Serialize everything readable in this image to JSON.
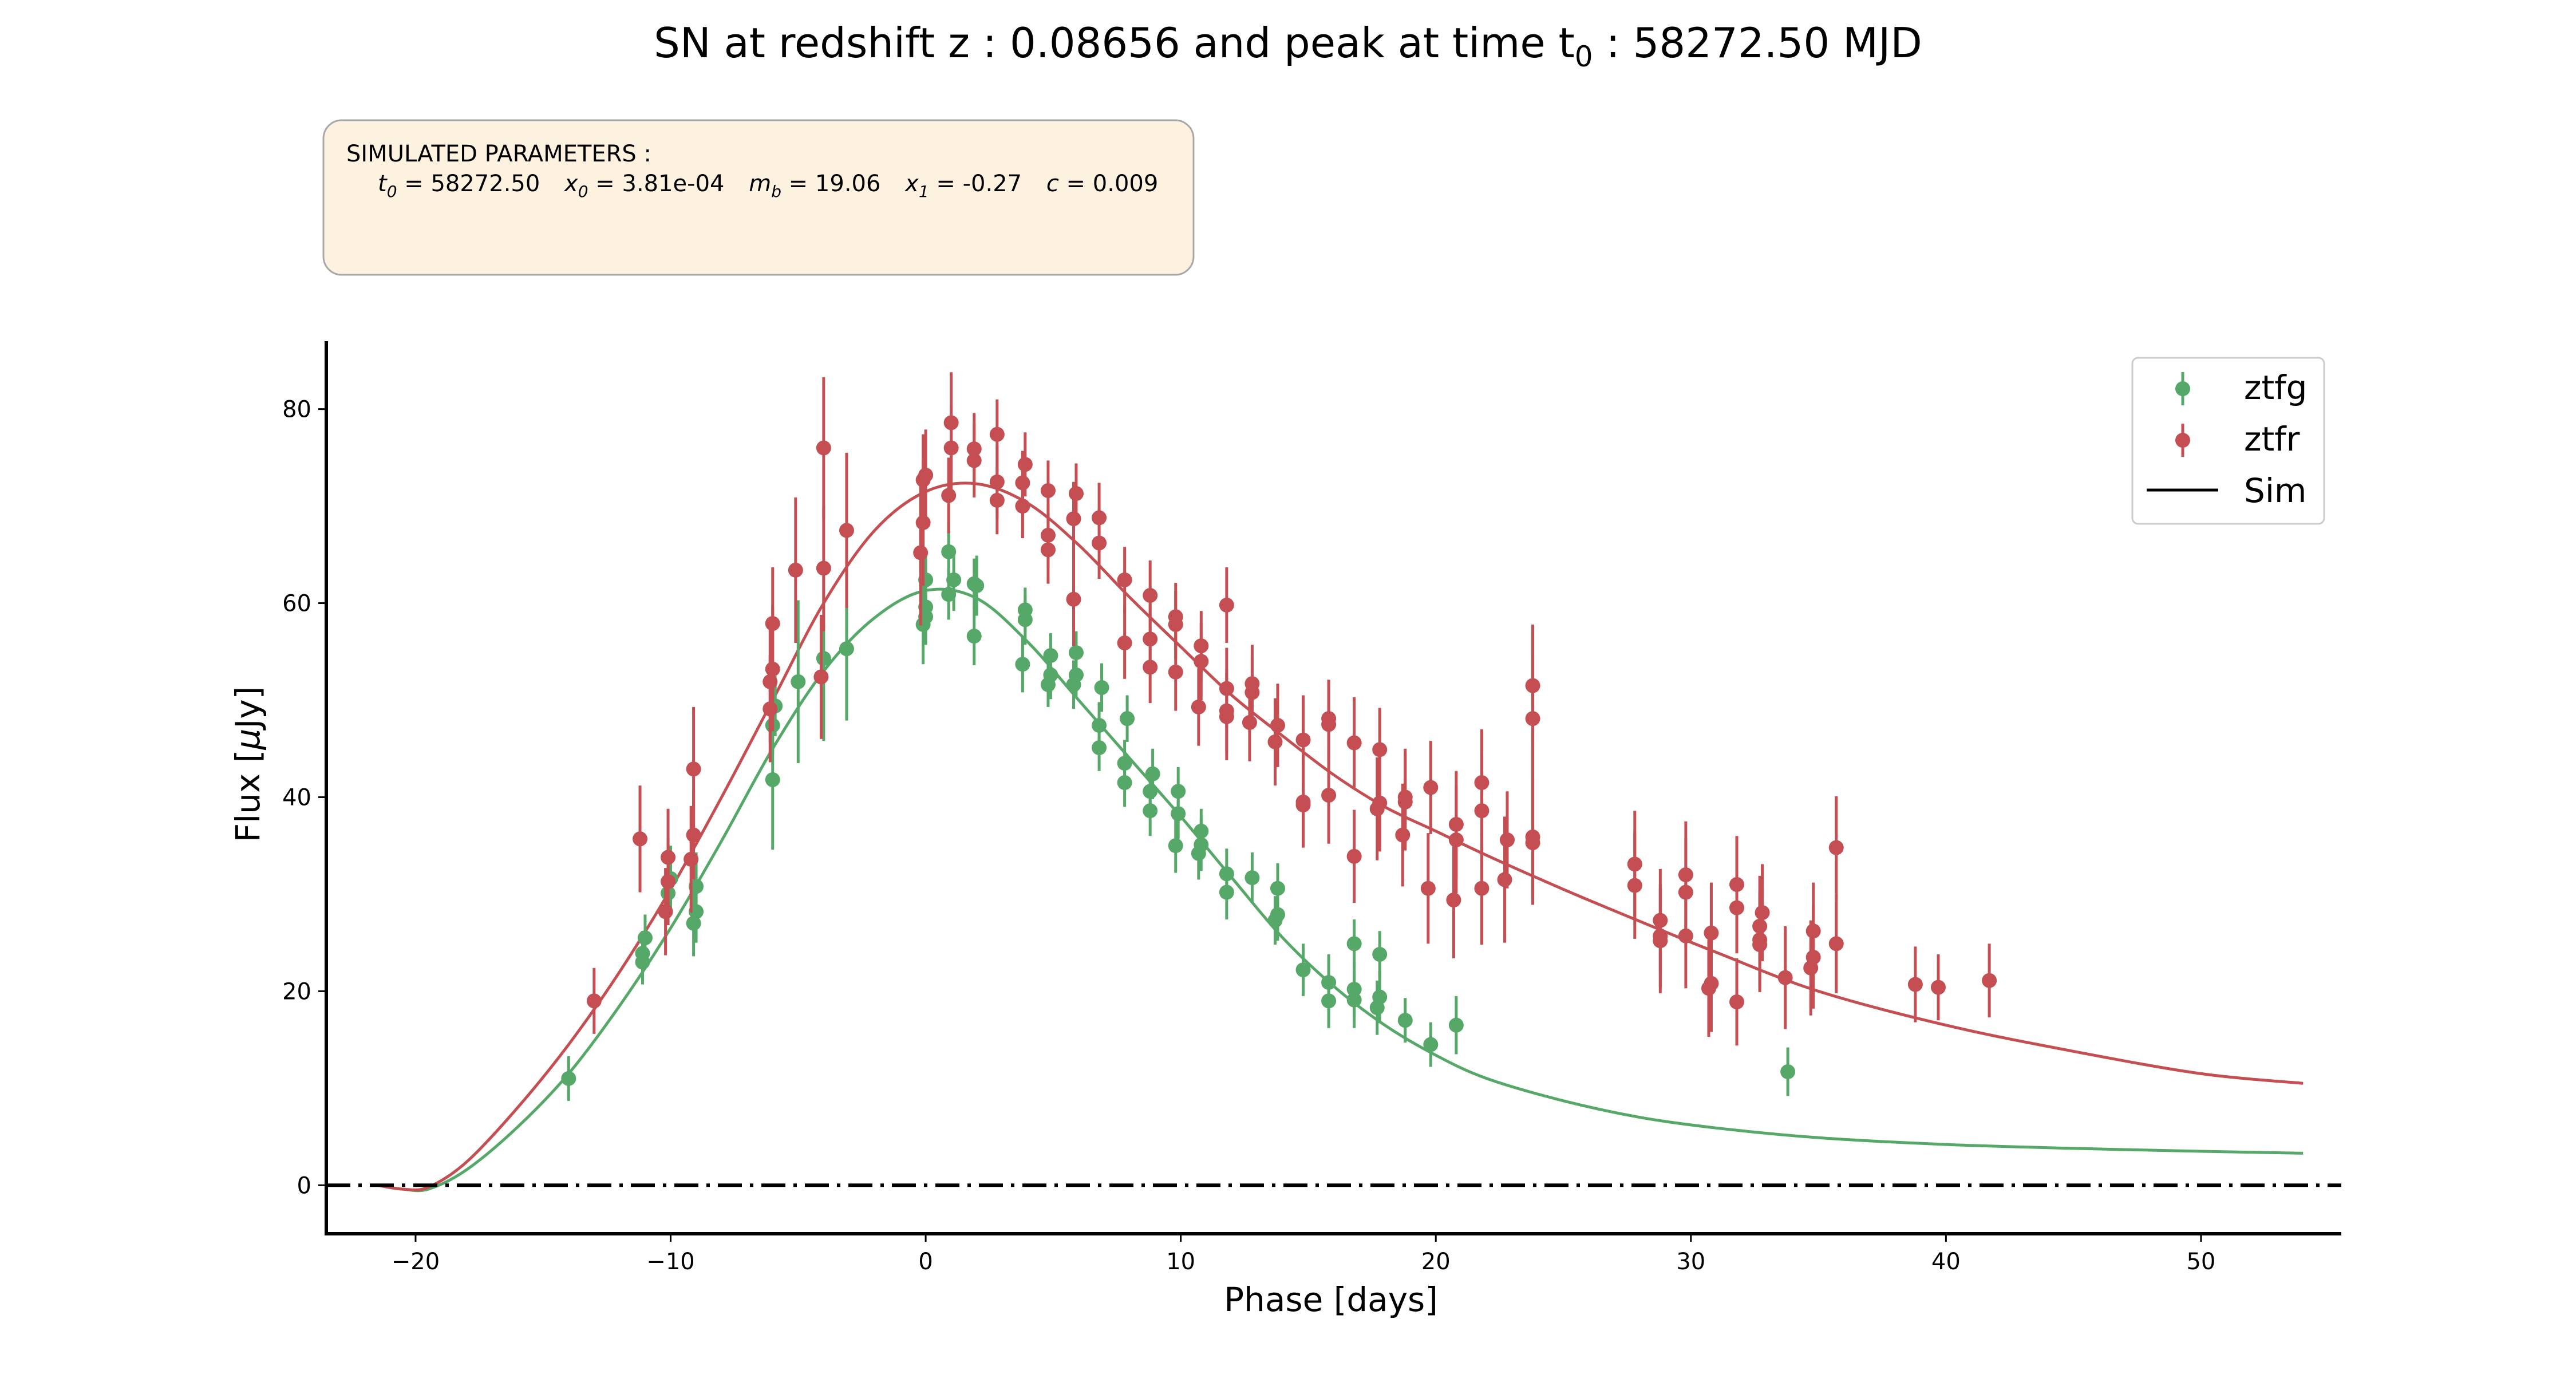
{
  "chart_data": {
    "type": "scatter",
    "title_parts": {
      "prefix": "SN at redshift z : 0.08656 and peak at time t",
      "sub": "0",
      "suffix": " : 58272.50 MJD"
    },
    "xlabel": "Phase [days]",
    "ylabel_parts": {
      "prefix": "Flux [",
      "mu": "μ",
      "suffix": "Jy]"
    },
    "xlim": [
      -23.5,
      55.5
    ],
    "ylim": [
      -5,
      87
    ],
    "xticks": [
      -20,
      -10,
      0,
      10,
      20,
      30,
      40,
      50
    ],
    "yticks": [
      0,
      20,
      40,
      60,
      80
    ],
    "xtick_labels": [
      "−20",
      "−10",
      "0",
      "10",
      "20",
      "30",
      "40",
      "50"
    ],
    "ytick_labels": [
      "0",
      "20",
      "40",
      "60",
      "80"
    ],
    "zero_line": 0,
    "params_box": {
      "header": "SIMULATED PARAMETERS :",
      "t0": {
        "sym": "t",
        "sub": "0",
        "val": " = 58272.50"
      },
      "x0": {
        "sym": "x",
        "sub": "0",
        "val": " = 3.81e-04"
      },
      "mb": {
        "sym": "m",
        "sub": "b",
        "val": " = 19.06"
      },
      "x1": {
        "sym": "x",
        "sub": "1",
        "val": " = -0.27"
      },
      "c": {
        "sym": "c",
        "val": " = 0.009"
      }
    },
    "legend": [
      {
        "label": "ztfg",
        "kind": "point",
        "color": "#55a868"
      },
      {
        "label": "ztfr",
        "kind": "point",
        "color": "#c44e52"
      },
      {
        "label": "Sim",
        "kind": "line",
        "color": "#000000"
      }
    ],
    "series": [
      {
        "name": "ztfg",
        "color": "#55a868",
        "points": [
          [
            -14.0,
            11.0,
            2.3
          ],
          [
            -11.1,
            23.0,
            2.3
          ],
          [
            -11.1,
            23.9,
            2.3
          ],
          [
            -11.0,
            25.5,
            2.4
          ],
          [
            -10.1,
            30.1,
            3.0
          ],
          [
            -10.0,
            31.6,
            3.4
          ],
          [
            -9.1,
            27.0,
            3.4
          ],
          [
            -9.0,
            28.2,
            3.2
          ],
          [
            -9.0,
            30.8,
            3.5
          ],
          [
            -6.0,
            41.8,
            7.2
          ],
          [
            -6.0,
            47.4,
            3.0
          ],
          [
            -5.9,
            49.4,
            3.1
          ],
          [
            -5.0,
            51.9,
            8.4
          ],
          [
            -4.0,
            54.3,
            8.5
          ],
          [
            -3.1,
            55.3,
            7.4
          ],
          [
            -0.1,
            57.8,
            4.1
          ],
          [
            0.0,
            58.6,
            2.9
          ],
          [
            0.0,
            59.6,
            2.5
          ],
          [
            0.0,
            62.4,
            2.6
          ],
          [
            0.9,
            60.9,
            2.6
          ],
          [
            0.9,
            65.3,
            3.0
          ],
          [
            1.1,
            62.4,
            3.2
          ],
          [
            1.9,
            56.6,
            3.0
          ],
          [
            1.9,
            62.0,
            2.6
          ],
          [
            2.0,
            61.8,
            3.1
          ],
          [
            3.8,
            53.7,
            2.9
          ],
          [
            3.9,
            58.3,
            2.6
          ],
          [
            3.9,
            59.3,
            2.3
          ],
          [
            4.8,
            51.6,
            2.3
          ],
          [
            4.9,
            52.6,
            2.5
          ],
          [
            4.9,
            54.6,
            2.3
          ],
          [
            5.8,
            51.6,
            2.5
          ],
          [
            5.9,
            52.6,
            2.4
          ],
          [
            5.9,
            54.9,
            2.2
          ],
          [
            6.8,
            45.1,
            2.4
          ],
          [
            6.8,
            47.4,
            2.4
          ],
          [
            6.9,
            51.3,
            2.5
          ],
          [
            7.8,
            41.5,
            2.5
          ],
          [
            7.8,
            43.5,
            2.4
          ],
          [
            7.9,
            48.1,
            2.4
          ],
          [
            8.8,
            38.6,
            2.6
          ],
          [
            8.8,
            40.6,
            2.5
          ],
          [
            8.9,
            42.4,
            2.6
          ],
          [
            9.8,
            35.0,
            2.8
          ],
          [
            9.9,
            38.3,
            2.6
          ],
          [
            9.9,
            40.6,
            2.5
          ],
          [
            10.7,
            34.2,
            2.7
          ],
          [
            10.8,
            35.1,
            2.7
          ],
          [
            10.8,
            36.5,
            2.3
          ],
          [
            11.8,
            30.2,
            2.8
          ],
          [
            11.8,
            32.1,
            2.6
          ],
          [
            12.8,
            31.7,
            2.6
          ],
          [
            13.7,
            27.3,
            2.5
          ],
          [
            13.8,
            27.9,
            2.7
          ],
          [
            13.8,
            30.6,
            2.6
          ],
          [
            14.8,
            22.2,
            2.7
          ],
          [
            15.8,
            19.0,
            2.8
          ],
          [
            15.8,
            20.9,
            2.9
          ],
          [
            16.8,
            19.1,
            2.9
          ],
          [
            16.8,
            20.2,
            2.9
          ],
          [
            16.8,
            24.9,
            2.5
          ],
          [
            17.7,
            18.3,
            2.8
          ],
          [
            17.8,
            19.4,
            2.7
          ],
          [
            17.8,
            23.8,
            2.4
          ],
          [
            18.8,
            17.0,
            2.3
          ],
          [
            19.8,
            14.5,
            2.3
          ],
          [
            20.8,
            16.5,
            3.0
          ],
          [
            33.8,
            11.7,
            2.5
          ]
        ]
      },
      {
        "name": "ztfr",
        "color": "#c44e52",
        "points": [
          [
            -13.0,
            19.0,
            3.4
          ],
          [
            -11.2,
            35.7,
            5.5
          ],
          [
            -10.2,
            28.2,
            4.5
          ],
          [
            -10.1,
            31.3,
            4.5
          ],
          [
            -10.1,
            33.8,
            5.0
          ],
          [
            -9.2,
            33.6,
            5.5
          ],
          [
            -9.1,
            36.1,
            4.6
          ],
          [
            -9.1,
            42.9,
            6.4
          ],
          [
            -6.1,
            49.1,
            5.5
          ],
          [
            -6.1,
            51.9,
            6.3
          ],
          [
            -6.0,
            53.2,
            6.4
          ],
          [
            -6.0,
            57.9,
            5.8
          ],
          [
            -5.1,
            63.4,
            7.5
          ],
          [
            -4.1,
            52.4,
            6.4
          ],
          [
            -4.0,
            63.6,
            6.5
          ],
          [
            -4.0,
            76.0,
            7.3
          ],
          [
            -3.1,
            67.5,
            8.0
          ],
          [
            -0.2,
            65.2,
            7.5
          ],
          [
            -0.1,
            68.3,
            6.5
          ],
          [
            -0.1,
            72.7,
            4.7
          ],
          [
            0.0,
            73.2,
            4.7
          ],
          [
            0.9,
            71.1,
            3.9
          ],
          [
            1.0,
            76.0,
            4.3
          ],
          [
            1.0,
            78.6,
            5.2
          ],
          [
            1.9,
            74.7,
            3.8
          ],
          [
            1.9,
            75.9,
            3.7
          ],
          [
            2.8,
            70.6,
            3.5
          ],
          [
            2.8,
            72.5,
            3.8
          ],
          [
            2.8,
            77.4,
            3.6
          ],
          [
            3.8,
            70.0,
            3.3
          ],
          [
            3.8,
            72.4,
            3.3
          ],
          [
            3.9,
            74.3,
            3.3
          ],
          [
            4.8,
            65.5,
            3.5
          ],
          [
            4.8,
            67.0,
            3.3
          ],
          [
            4.8,
            71.6,
            3.1
          ],
          [
            5.8,
            60.4,
            4.8
          ],
          [
            5.8,
            68.7,
            3.8
          ],
          [
            5.9,
            71.3,
            3.1
          ],
          [
            6.8,
            66.2,
            3.7
          ],
          [
            6.8,
            68.8,
            3.6
          ],
          [
            7.8,
            55.9,
            3.7
          ],
          [
            7.8,
            62.4,
            3.4
          ],
          [
            8.8,
            53.4,
            3.7
          ],
          [
            8.8,
            56.3,
            3.6
          ],
          [
            8.8,
            60.8,
            3.6
          ],
          [
            9.8,
            52.9,
            4.0
          ],
          [
            9.8,
            57.8,
            3.5
          ],
          [
            9.8,
            58.6,
            3.5
          ],
          [
            10.7,
            49.3,
            4.0
          ],
          [
            10.8,
            54.0,
            4.0
          ],
          [
            10.8,
            55.6,
            3.6
          ],
          [
            11.8,
            48.3,
            4.5
          ],
          [
            11.8,
            48.9,
            4.3
          ],
          [
            11.8,
            51.2,
            4.2
          ],
          [
            11.8,
            59.8,
            3.9
          ],
          [
            12.7,
            47.7,
            4.0
          ],
          [
            12.8,
            50.8,
            3.8
          ],
          [
            12.8,
            51.7,
            4.0
          ],
          [
            13.7,
            45.7,
            4.5
          ],
          [
            13.8,
            47.4,
            4.3
          ],
          [
            14.8,
            39.2,
            4.4
          ],
          [
            14.8,
            39.5,
            4.3
          ],
          [
            14.8,
            45.9,
            4.6
          ],
          [
            15.8,
            40.2,
            5.0
          ],
          [
            15.8,
            47.5,
            4.6
          ],
          [
            15.8,
            48.1,
            4.0
          ],
          [
            16.8,
            33.9,
            4.8
          ],
          [
            16.8,
            45.6,
            4.7
          ],
          [
            17.7,
            38.8,
            5.3
          ],
          [
            17.8,
            39.4,
            5.0
          ],
          [
            17.8,
            44.9,
            4.3
          ],
          [
            18.7,
            36.1,
            5.3
          ],
          [
            18.8,
            39.5,
            5.0
          ],
          [
            18.8,
            40.0,
            5.0
          ],
          [
            19.7,
            30.6,
            5.7
          ],
          [
            19.8,
            41.0,
            4.8
          ],
          [
            20.7,
            29.4,
            6.0
          ],
          [
            20.8,
            35.6,
            5.5
          ],
          [
            20.8,
            37.2,
            5.5
          ],
          [
            21.8,
            30.6,
            5.8
          ],
          [
            21.8,
            38.6,
            5.8
          ],
          [
            21.8,
            41.5,
            5.5
          ],
          [
            22.7,
            31.5,
            6.5
          ],
          [
            22.8,
            35.6,
            5.0
          ],
          [
            23.8,
            35.3,
            6.4
          ],
          [
            23.8,
            35.9,
            6.0
          ],
          [
            23.8,
            48.1,
            6.5
          ],
          [
            23.8,
            51.5,
            6.3
          ],
          [
            27.8,
            30.9,
            5.5
          ],
          [
            27.8,
            33.1,
            5.5
          ],
          [
            28.8,
            25.2,
            5.4
          ],
          [
            28.8,
            25.7,
            5.3
          ],
          [
            28.8,
            27.3,
            5.3
          ],
          [
            29.8,
            25.7,
            5.4
          ],
          [
            29.8,
            30.2,
            5.5
          ],
          [
            29.8,
            32.0,
            5.5
          ],
          [
            30.7,
            20.3,
            5.0
          ],
          [
            30.8,
            20.8,
            5.0
          ],
          [
            30.8,
            26.0,
            5.2
          ],
          [
            31.8,
            18.9,
            4.5
          ],
          [
            31.8,
            28.6,
            4.7
          ],
          [
            31.8,
            31.0,
            5.0
          ],
          [
            32.7,
            24.8,
            4.9
          ],
          [
            32.7,
            25.3,
            5.0
          ],
          [
            32.7,
            26.7,
            5.2
          ],
          [
            32.8,
            28.1,
            5.0
          ],
          [
            33.7,
            21.4,
            5.3
          ],
          [
            34.7,
            22.4,
            4.9
          ],
          [
            34.8,
            23.5,
            5.3
          ],
          [
            34.8,
            26.2,
            5.0
          ],
          [
            35.7,
            24.9,
            5.1
          ],
          [
            35.7,
            34.8,
            5.3
          ],
          [
            38.8,
            20.7,
            3.9
          ],
          [
            39.7,
            20.4,
            3.4
          ],
          [
            41.7,
            21.1,
            3.8
          ]
        ]
      }
    ],
    "sim_curves": [
      {
        "name": "ztfg",
        "color": "#55a868",
        "x": [
          -21.5,
          -20.5,
          -19.5,
          -18,
          -16,
          -14,
          -12,
          -10,
          -8,
          -6,
          -4,
          -2,
          0,
          2,
          4,
          6,
          8,
          10,
          12,
          14,
          16,
          18,
          20,
          22,
          25,
          28,
          31,
          35,
          40,
          45,
          50,
          54
        ],
        "y": [
          0,
          -0.4,
          -0.4,
          1.6,
          6,
          11.5,
          18.5,
          26.5,
          35.5,
          45,
          53,
          58.5,
          61.3,
          60.5,
          56,
          50,
          44,
          38,
          31.7,
          25.5,
          20.5,
          16.5,
          13.4,
          11,
          8.7,
          7,
          5.9,
          4.9,
          4.2,
          3.8,
          3.5,
          3.3
        ]
      },
      {
        "name": "ztfr",
        "color": "#c44e52",
        "x": [
          -21.5,
          -20.5,
          -19.5,
          -18,
          -16,
          -14,
          -12,
          -10,
          -8,
          -6,
          -4,
          -2,
          0,
          2,
          4,
          6,
          8,
          10,
          12,
          14,
          16,
          18,
          20,
          22,
          25,
          28,
          31,
          35,
          40,
          45,
          50,
          54
        ],
        "y": [
          0,
          -0.4,
          -0.2,
          2.4,
          8,
          14.5,
          22,
          30.5,
          40,
          50,
          60,
          67.5,
          71.5,
          72.3,
          70.3,
          66,
          60.6,
          55.5,
          50.5,
          46.3,
          42.3,
          39,
          36.5,
          34,
          30.5,
          27.2,
          24,
          20,
          16.5,
          13.8,
          11.5,
          10.5
        ]
      }
    ]
  }
}
